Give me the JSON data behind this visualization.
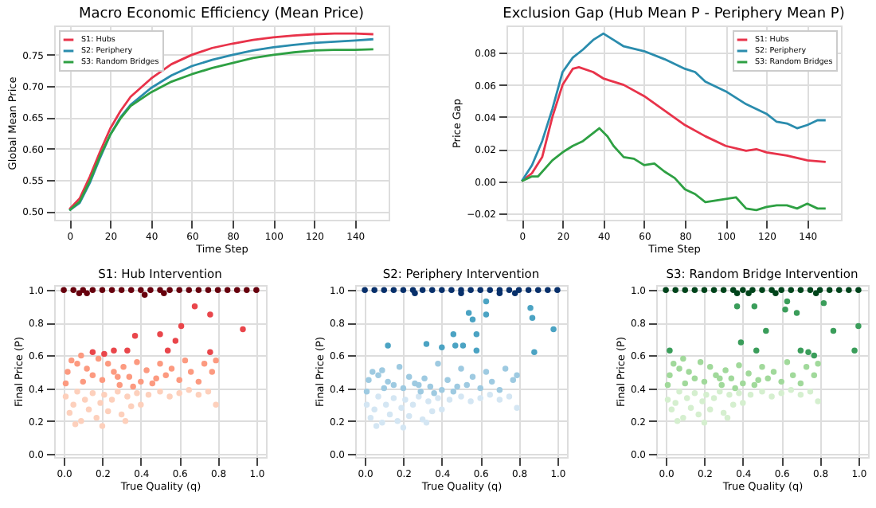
{
  "chart_data": [
    {
      "type": "line",
      "title": "Macro Economic Efficiency (Mean Price)",
      "xlabel": "Time Step",
      "ylabel": "Global Mean Price",
      "xlim": [
        -7.5,
        156.5
      ],
      "xticks": [
        0,
        20,
        40,
        60,
        80,
        100,
        120,
        140
      ],
      "ylim": [
        0.486,
        0.797
      ],
      "yticks": [
        {
          "value": 0.5,
          "label": "0.50"
        },
        {
          "value": 0.55,
          "label": "0.55"
        },
        {
          "value": 0.6,
          "label": "0.60"
        },
        {
          "value": 0.65,
          "label": "0.65"
        },
        {
          "value": 0.7,
          "label": "0.70"
        },
        {
          "value": 0.75,
          "label": "0.75"
        }
      ],
      "grid": true,
      "legend": "top left",
      "line_style": "solid",
      "marker": "none",
      "x": [
        0,
        5,
        10,
        15,
        20,
        25,
        30,
        40,
        50,
        60,
        70,
        80,
        90,
        100,
        110,
        120,
        130,
        140,
        149
      ],
      "series": [
        {
          "name": "S1: Hubs",
          "color": "#e8334a",
          "values": [
            0.503,
            0.52,
            0.555,
            0.595,
            0.632,
            0.66,
            0.683,
            0.712,
            0.735,
            0.75,
            0.761,
            0.768,
            0.774,
            0.778,
            0.781,
            0.783,
            0.784,
            0.784,
            0.783
          ]
        },
        {
          "name": "S2: Periphery",
          "color": "#2a8cad",
          "values": [
            0.501,
            0.513,
            0.545,
            0.585,
            0.622,
            0.65,
            0.67,
            0.697,
            0.717,
            0.732,
            0.742,
            0.75,
            0.757,
            0.762,
            0.766,
            0.769,
            0.771,
            0.773,
            0.775
          ]
        },
        {
          "name": "S3: Random Bridges",
          "color": "#2ea043",
          "values": [
            0.501,
            0.515,
            0.548,
            0.588,
            0.622,
            0.648,
            0.668,
            0.69,
            0.707,
            0.719,
            0.729,
            0.737,
            0.745,
            0.75,
            0.754,
            0.757,
            0.758,
            0.758,
            0.759
          ]
        }
      ]
    },
    {
      "type": "line",
      "title": "Exclusion Gap (Hub Mean P - Periphery Mean P)",
      "xlabel": "Time Step",
      "ylabel": "Price Gap",
      "xlim": [
        -7.5,
        156.5
      ],
      "xticks": [
        0,
        20,
        40,
        60,
        80,
        100,
        120,
        140
      ],
      "ylim": [
        -0.024,
        0.097
      ],
      "yticks": [
        {
          "value": -0.02,
          "label": "−0.02"
        },
        {
          "value": 0,
          "label": "0.00"
        },
        {
          "value": 0.02,
          "label": "0.02"
        },
        {
          "value": 0.04,
          "label": "0.04"
        },
        {
          "value": 0.06,
          "label": "0.06"
        },
        {
          "value": 0.08,
          "label": "0.08"
        }
      ],
      "grid": true,
      "legend": "top right",
      "line_style": "solid",
      "marker": "none",
      "series": [
        {
          "name": "S1: Hubs",
          "color": "#e8334a",
          "x": [
            0,
            5,
            10,
            15,
            20,
            25,
            28,
            35,
            40,
            50,
            60,
            70,
            80,
            90,
            100,
            110,
            115,
            120,
            130,
            140,
            149
          ],
          "values": [
            0,
            0.005,
            0.015,
            0.04,
            0.06,
            0.07,
            0.071,
            0.068,
            0.064,
            0.06,
            0.053,
            0.044,
            0.035,
            0.028,
            0.022,
            0.019,
            0.02,
            0.018,
            0.016,
            0.013,
            0.012
          ]
        },
        {
          "name": "S2: Periphery",
          "color": "#2a8cad",
          "x": [
            0,
            5,
            10,
            15,
            20,
            25,
            30,
            35,
            40,
            45,
            50,
            60,
            70,
            80,
            85,
            90,
            100,
            110,
            120,
            125,
            130,
            135,
            140,
            145,
            149
          ],
          "values": [
            0,
            0.01,
            0.025,
            0.045,
            0.068,
            0.077,
            0.082,
            0.088,
            0.092,
            0.088,
            0.084,
            0.081,
            0.076,
            0.07,
            0.068,
            0.062,
            0.056,
            0.048,
            0.042,
            0.037,
            0.036,
            0.033,
            0.035,
            0.038,
            0.038
          ]
        },
        {
          "name": "S3: Random Bridges",
          "color": "#2ea043",
          "x": [
            0,
            5,
            8,
            15,
            20,
            25,
            30,
            35,
            38,
            42,
            45,
            50,
            55,
            60,
            65,
            70,
            75,
            80,
            85,
            90,
            95,
            100,
            105,
            110,
            115,
            120,
            125,
            130,
            135,
            140,
            145,
            149
          ],
          "values": [
            0,
            0.003,
            0.003,
            0.013,
            0.018,
            0.022,
            0.025,
            0.03,
            0.033,
            0.028,
            0.022,
            0.015,
            0.014,
            0.01,
            0.011,
            0.006,
            0.002,
            -0.005,
            -0.008,
            -0.013,
            -0.012,
            -0.011,
            -0.01,
            -0.017,
            -0.018,
            -0.016,
            -0.015,
            -0.015,
            -0.017,
            -0.014,
            -0.017,
            -0.017
          ]
        }
      ]
    },
    {
      "type": "scatter",
      "title": "S1: Hub Intervention",
      "xlabel": "True Quality (q)",
      "ylabel": "Final Price (P)",
      "xlim": [
        -0.05,
        1.05
      ],
      "xticks": [
        {
          "value": 0,
          "label": "0.0"
        },
        {
          "value": 0.2,
          "label": "0.2"
        },
        {
          "value": 0.4,
          "label": "0.4"
        },
        {
          "value": 0.6,
          "label": "0.6"
        },
        {
          "value": 0.8,
          "label": "0.8"
        },
        {
          "value": 1,
          "label": "1.0"
        }
      ],
      "ylim": [
        -0.02,
        1.03
      ],
      "yticks": [
        {
          "value": 0,
          "label": "0.0"
        },
        {
          "value": 0.2,
          "label": "0.2"
        },
        {
          "value": 0.4,
          "label": "0.4"
        },
        {
          "value": 0.6,
          "label": "0.6"
        },
        {
          "value": 0.8,
          "label": "0.8"
        },
        {
          "value": 1,
          "label": "1.0"
        }
      ],
      "grid": true,
      "marker": "circle",
      "series": [
        {
          "color": "#fdd0bc",
          "x": [
            0.01,
            0.03,
            0.05,
            0.07,
            0.09,
            0.11,
            0.13,
            0.15,
            0.17,
            0.19,
            0.21,
            0.23,
            0.25,
            0.28,
            0.3,
            0.33,
            0.35,
            0.38,
            0.4,
            0.44,
            0.5,
            0.55,
            0.6,
            0.65,
            0.7,
            0.75,
            0.79,
            0.06,
            0.2,
            0.32
          ],
          "values": [
            0.35,
            0.25,
            0.3,
            0.38,
            0.2,
            0.33,
            0.27,
            0.37,
            0.22,
            0.31,
            0.36,
            0.26,
            0.33,
            0.38,
            0.24,
            0.35,
            0.29,
            0.37,
            0.3,
            0.36,
            0.38,
            0.35,
            0.37,
            0.39,
            0.36,
            0.38,
            0.3,
            0.18,
            0.17,
            0.2
          ]
        },
        {
          "color": "#fc9a80",
          "x": [
            0.02,
            0.04,
            0.07,
            0.09,
            0.12,
            0.15,
            0.18,
            0.2,
            0.23,
            0.26,
            0.29,
            0.31,
            0.34,
            0.38,
            0.4,
            0.43,
            0.46,
            0.5,
            0.53,
            0.56,
            0.6,
            0.63,
            0.66,
            0.7,
            0.73,
            0.77,
            0.79,
            0.01,
            0.1,
            0.28,
            0.36,
            0.48
          ],
          "values": [
            0.5,
            0.57,
            0.55,
            0.6,
            0.52,
            0.48,
            0.58,
            0.45,
            0.55,
            0.5,
            0.42,
            0.53,
            0.47,
            0.56,
            0.44,
            0.51,
            0.43,
            0.55,
            0.48,
            0.52,
            0.45,
            0.57,
            0.5,
            0.44,
            0.55,
            0.5,
            0.57,
            0.43,
            0.44,
            0.47,
            0.41,
            0.46
          ]
        },
        {
          "color": "#e9464b",
          "x": [
            0.37,
            0.5,
            0.58,
            0.61,
            0.68,
            0.76,
            0.93,
            0.54,
            0.33,
            0.26,
            0.15,
            0.21,
            0.76
          ],
          "values": [
            0.72,
            0.73,
            0.69,
            0.78,
            0.9,
            0.85,
            0.76,
            0.63,
            0.63,
            0.63,
            0.62,
            0.61,
            0.62
          ]
        },
        {
          "color": "#67000d",
          "x": [
            0,
            0.05,
            0.1,
            0.15,
            0.2,
            0.25,
            0.3,
            0.35,
            0.4,
            0.45,
            0.5,
            0.55,
            0.6,
            0.65,
            0.7,
            0.75,
            0.8,
            0.85,
            0.9,
            0.95,
            1,
            0.08,
            0.12,
            0.42,
            0.52
          ],
          "values": [
            1,
            1,
            1,
            1,
            1,
            1,
            1,
            1,
            1,
            1,
            1,
            1,
            1,
            1,
            1,
            1,
            1,
            1,
            1,
            1,
            1,
            0.98,
            0.98,
            0.97,
            0.98
          ]
        }
      ]
    },
    {
      "type": "scatter",
      "title": "S2: Periphery Intervention",
      "xlabel": "True Quality (q)",
      "ylabel": "Final Price (P)",
      "xlim": [
        -0.05,
        1.05
      ],
      "xticks": [
        {
          "value": 0,
          "label": "0.0"
        },
        {
          "value": 0.2,
          "label": "0.2"
        },
        {
          "value": 0.4,
          "label": "0.4"
        },
        {
          "value": 0.6,
          "label": "0.6"
        },
        {
          "value": 0.8,
          "label": "0.8"
        },
        {
          "value": 1,
          "label": "1.0"
        }
      ],
      "ylim": [
        -0.02,
        1.03
      ],
      "yticks": [
        {
          "value": 0,
          "label": "0.0"
        },
        {
          "value": 0.2,
          "label": "0.2"
        },
        {
          "value": 0.4,
          "label": "0.4"
        },
        {
          "value": 0.6,
          "label": "0.6"
        },
        {
          "value": 0.8,
          "label": "0.8"
        },
        {
          "value": 1,
          "label": "1.0"
        }
      ],
      "grid": true,
      "marker": "circle",
      "series": [
        {
          "color": "#d4e6f3",
          "x": [
            0.01,
            0.03,
            0.05,
            0.07,
            0.09,
            0.11,
            0.13,
            0.15,
            0.17,
            0.19,
            0.21,
            0.23,
            0.25,
            0.28,
            0.3,
            0.33,
            0.35,
            0.38,
            0.4,
            0.44,
            0.5,
            0.55,
            0.6,
            0.65,
            0.7,
            0.75,
            0.79,
            0.06,
            0.2,
            0.32
          ],
          "values": [
            0.3,
            0.22,
            0.27,
            0.35,
            0.19,
            0.3,
            0.24,
            0.34,
            0.2,
            0.28,
            0.33,
            0.23,
            0.3,
            0.35,
            0.21,
            0.32,
            0.26,
            0.34,
            0.27,
            0.33,
            0.35,
            0.32,
            0.34,
            0.36,
            0.33,
            0.35,
            0.28,
            0.17,
            0.16,
            0.19
          ]
        },
        {
          "color": "#9ecae1",
          "x": [
            0.02,
            0.04,
            0.07,
            0.09,
            0.12,
            0.15,
            0.18,
            0.2,
            0.23,
            0.26,
            0.29,
            0.31,
            0.34,
            0.38,
            0.4,
            0.43,
            0.46,
            0.5,
            0.53,
            0.56,
            0.6,
            0.63,
            0.66,
            0.7,
            0.73,
            0.77,
            0.79,
            0.01,
            0.1,
            0.28,
            0.36,
            0.48
          ],
          "values": [
            0.45,
            0.5,
            0.48,
            0.51,
            0.44,
            0.42,
            0.53,
            0.4,
            0.47,
            0.43,
            0.38,
            0.46,
            0.41,
            0.55,
            0.39,
            0.45,
            0.38,
            0.52,
            0.42,
            0.47,
            0.4,
            0.5,
            0.44,
            0.39,
            0.52,
            0.45,
            0.48,
            0.38,
            0.4,
            0.42,
            0.37,
            0.41
          ]
        },
        {
          "color": "#4ba3c3",
          "x": [
            0.12,
            0.32,
            0.4,
            0.46,
            0.47,
            0.51,
            0.54,
            0.56,
            0.58,
            0.63,
            0.63,
            0.86,
            0.87,
            0.88,
            0.98,
            0.58
          ],
          "values": [
            0.66,
            0.67,
            0.65,
            0.73,
            0.66,
            0.66,
            0.86,
            0.82,
            0.73,
            0.93,
            0.85,
            0.89,
            0.83,
            0.62,
            0.76,
            0.63
          ]
        },
        {
          "color": "#08306b",
          "x": [
            0,
            0.05,
            0.1,
            0.15,
            0.2,
            0.25,
            0.3,
            0.35,
            0.4,
            0.45,
            0.5,
            0.55,
            0.6,
            0.65,
            0.7,
            0.75,
            0.8,
            0.85,
            0.9,
            0.95,
            1,
            0.26,
            0.5,
            0.7,
            0.78
          ],
          "values": [
            1,
            1,
            1,
            1,
            1,
            1,
            1,
            1,
            1,
            1,
            1,
            1,
            1,
            1,
            1,
            1,
            1,
            1,
            1,
            1,
            1,
            0.98,
            0.98,
            0.98,
            0.98
          ]
        }
      ]
    },
    {
      "type": "scatter",
      "title": "S3: Random Bridge Intervention",
      "xlabel": "True Quality (q)",
      "ylabel": "Final Price (P)",
      "xlim": [
        -0.05,
        1.05
      ],
      "xticks": [
        {
          "value": 0,
          "label": "0.0"
        },
        {
          "value": 0.2,
          "label": "0.2"
        },
        {
          "value": 0.4,
          "label": "0.4"
        },
        {
          "value": 0.6,
          "label": "0.6"
        },
        {
          "value": 0.8,
          "label": "0.8"
        },
        {
          "value": 1,
          "label": "1.0"
        }
      ],
      "ylim": [
        -0.02,
        1.03
      ],
      "yticks": [
        {
          "value": 0,
          "label": "0.0"
        },
        {
          "value": 0.2,
          "label": "0.2"
        },
        {
          "value": 0.4,
          "label": "0.4"
        },
        {
          "value": 0.6,
          "label": "0.6"
        },
        {
          "value": 0.8,
          "label": "0.8"
        },
        {
          "value": 1,
          "label": "1.0"
        }
      ],
      "grid": true,
      "marker": "circle",
      "series": [
        {
          "color": "#d5efcf",
          "x": [
            0.01,
            0.03,
            0.05,
            0.07,
            0.09,
            0.11,
            0.13,
            0.15,
            0.17,
            0.19,
            0.21,
            0.23,
            0.25,
            0.28,
            0.3,
            0.33,
            0.35,
            0.38,
            0.4,
            0.44,
            0.5,
            0.55,
            0.6,
            0.65,
            0.7,
            0.75,
            0.79,
            0.06,
            0.2,
            0.32
          ],
          "values": [
            0.33,
            0.27,
            0.31,
            0.38,
            0.22,
            0.34,
            0.28,
            0.37,
            0.24,
            0.32,
            0.36,
            0.27,
            0.34,
            0.38,
            0.25,
            0.36,
            0.3,
            0.37,
            0.31,
            0.36,
            0.38,
            0.35,
            0.37,
            0.39,
            0.36,
            0.38,
            0.32,
            0.2,
            0.19,
            0.22
          ]
        },
        {
          "color": "#a1d99b",
          "x": [
            0.02,
            0.04,
            0.07,
            0.09,
            0.12,
            0.15,
            0.18,
            0.2,
            0.23,
            0.26,
            0.29,
            0.31,
            0.34,
            0.38,
            0.4,
            0.43,
            0.46,
            0.5,
            0.53,
            0.56,
            0.6,
            0.63,
            0.66,
            0.7,
            0.73,
            0.77,
            0.79,
            0.01,
            0.1,
            0.28,
            0.36,
            0.48
          ],
          "values": [
            0.48,
            0.55,
            0.52,
            0.58,
            0.5,
            0.46,
            0.56,
            0.44,
            0.53,
            0.48,
            0.42,
            0.51,
            0.46,
            0.54,
            0.43,
            0.49,
            0.42,
            0.53,
            0.46,
            0.5,
            0.44,
            0.56,
            0.48,
            0.43,
            0.53,
            0.48,
            0.55,
            0.42,
            0.43,
            0.46,
            0.4,
            0.45
          ]
        },
        {
          "color": "#3a9d5a",
          "x": [
            0.02,
            0.37,
            0.39,
            0.46,
            0.47,
            0.52,
            0.62,
            0.63,
            0.68,
            0.7,
            0.82,
            0.87,
            0.98,
            1,
            0.74,
            0.77
          ],
          "values": [
            0.63,
            0.9,
            0.68,
            0.9,
            0.63,
            0.75,
            0.88,
            0.93,
            0.86,
            0.63,
            0.92,
            0.75,
            0.63,
            0.78,
            0.62,
            0.6
          ]
        },
        {
          "color": "#00441b",
          "x": [
            0,
            0.05,
            0.1,
            0.15,
            0.2,
            0.25,
            0.3,
            0.35,
            0.4,
            0.45,
            0.5,
            0.55,
            0.6,
            0.65,
            0.7,
            0.75,
            0.8,
            0.85,
            0.9,
            0.95,
            1,
            0.37,
            0.43,
            0.57,
            0.78
          ],
          "values": [
            1,
            1,
            1,
            1,
            1,
            1,
            1,
            1,
            1,
            1,
            1,
            1,
            1,
            1,
            1,
            1,
            1,
            1,
            1,
            1,
            1,
            0.98,
            0.98,
            0.98,
            0.98
          ]
        }
      ]
    }
  ]
}
